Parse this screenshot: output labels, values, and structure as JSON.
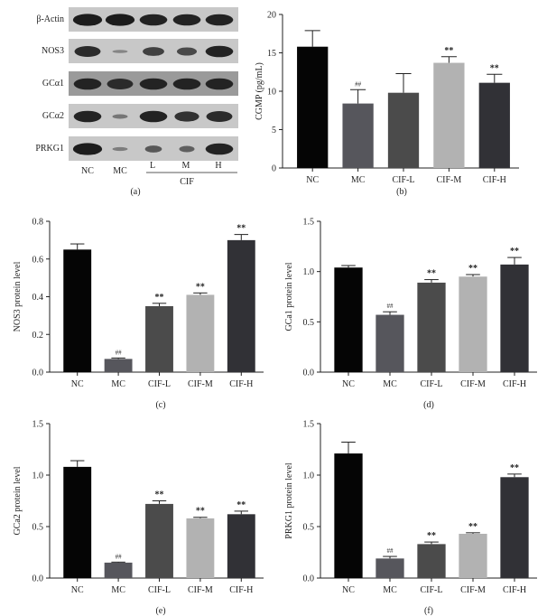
{
  "panel_a": {
    "rows": [
      "β-Actin",
      "NOS3",
      "GCα1",
      "GCα2",
      "PRKG1"
    ],
    "lanes": [
      "NC",
      "MC",
      "L",
      "M",
      "H"
    ],
    "group_label": "CIF",
    "caption": "(a)",
    "band_intensity": [
      [
        0.95,
        0.95,
        0.9,
        0.9,
        0.9
      ],
      [
        0.85,
        0.25,
        0.7,
        0.65,
        0.9
      ],
      [
        0.9,
        0.85,
        0.9,
        0.9,
        0.9
      ],
      [
        0.9,
        0.35,
        0.9,
        0.8,
        0.85
      ],
      [
        0.95,
        0.3,
        0.55,
        0.5,
        0.9
      ]
    ]
  },
  "colors": {
    "NC": "#050505",
    "MC": "#56565c",
    "CIF-L": "#4b4b4b",
    "CIF-M": "#b2b2b2",
    "CIF-H": "#313136"
  },
  "chart_data": [
    {
      "id": "b",
      "type": "bar",
      "caption": "(b)",
      "categories": [
        "NC",
        "MC",
        "CIF-L",
        "CIF-M",
        "CIF-H"
      ],
      "values": [
        15.8,
        8.4,
        9.8,
        13.7,
        11.1
      ],
      "errors": [
        2.1,
        1.8,
        2.5,
        0.8,
        1.1
      ],
      "annotations": [
        "",
        "##",
        "",
        "**",
        "**"
      ],
      "ylabel": "CGMP (pg/mL)",
      "ylim": [
        0,
        20
      ],
      "yticks": [
        0,
        5,
        10,
        15,
        20
      ],
      "ytick_labels": [
        "0",
        "5",
        "10",
        "15",
        "20"
      ]
    },
    {
      "id": "c",
      "type": "bar",
      "caption": "(c)",
      "categories": [
        "NC",
        "MC",
        "CIF-L",
        "CIF-M",
        "CIF-H"
      ],
      "values": [
        0.65,
        0.07,
        0.35,
        0.41,
        0.7
      ],
      "errors": [
        0.03,
        0.005,
        0.015,
        0.01,
        0.03
      ],
      "annotations": [
        "",
        "##",
        "**",
        "**",
        "**"
      ],
      "ylabel": "NOS3 protein level",
      "ylim": [
        0,
        0.8
      ],
      "yticks": [
        0,
        0.2,
        0.4,
        0.6,
        0.8
      ],
      "ytick_labels": [
        "0.0",
        "0.2",
        "0.4",
        "0.6",
        "0.8"
      ]
    },
    {
      "id": "d",
      "type": "bar",
      "caption": "(d)",
      "categories": [
        "NC",
        "MC",
        "CIF-L",
        "CIF-M",
        "CIF-H"
      ],
      "values": [
        1.04,
        0.57,
        0.89,
        0.95,
        1.07
      ],
      "errors": [
        0.02,
        0.03,
        0.03,
        0.02,
        0.07
      ],
      "annotations": [
        "",
        "##",
        "**",
        "**",
        "**"
      ],
      "ylabel": "GCa1 protein level",
      "ylim": [
        0,
        1.5
      ],
      "yticks": [
        0,
        0.5,
        1.0,
        1.5
      ],
      "ytick_labels": [
        "0.0",
        "0.5",
        "1.0",
        "1.5"
      ]
    },
    {
      "id": "e",
      "type": "bar",
      "caption": "(e)",
      "categories": [
        "NC",
        "MC",
        "CIF-L",
        "CIF-M",
        "CIF-H"
      ],
      "values": [
        1.08,
        0.15,
        0.72,
        0.58,
        0.62
      ],
      "errors": [
        0.06,
        0.005,
        0.03,
        0.01,
        0.03
      ],
      "annotations": [
        "",
        "##",
        "**",
        "**",
        "**"
      ],
      "ylabel": "GCa2 protein level",
      "ylim": [
        0,
        1.5
      ],
      "yticks": [
        0,
        0.5,
        1.0,
        1.5
      ],
      "ytick_labels": [
        "0.0",
        "0.5",
        "1.0",
        "1.5"
      ]
    },
    {
      "id": "f",
      "type": "bar",
      "caption": "(f)",
      "categories": [
        "NC",
        "MC",
        "CIF-L",
        "CIF-M",
        "CIF-H"
      ],
      "values": [
        1.21,
        0.19,
        0.33,
        0.43,
        0.98
      ],
      "errors": [
        0.11,
        0.02,
        0.02,
        0.01,
        0.03
      ],
      "annotations": [
        "",
        "##",
        "**",
        "**",
        "**"
      ],
      "ylabel": "PRKG1 protein level",
      "ylim": [
        0,
        1.5
      ],
      "yticks": [
        0,
        0.5,
        1.0,
        1.5
      ],
      "ytick_labels": [
        "0.0",
        "0.5",
        "1.0",
        "1.5"
      ]
    }
  ]
}
